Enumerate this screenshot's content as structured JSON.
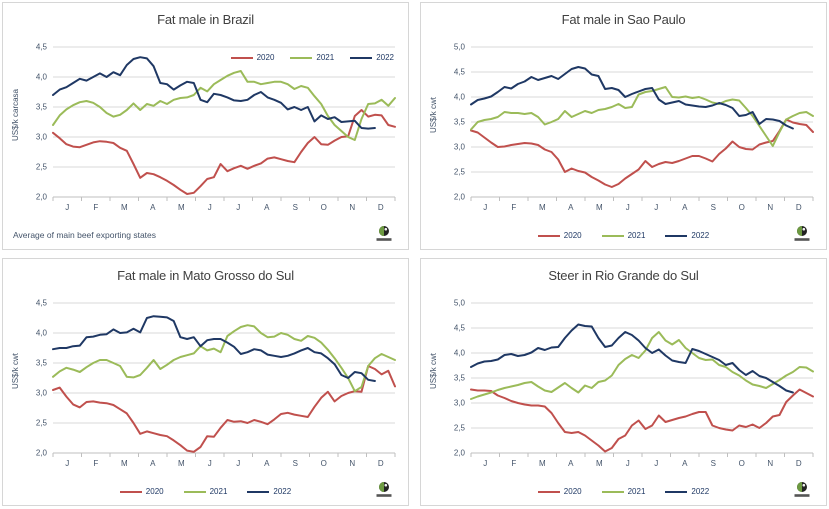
{
  "colors": {
    "series_2020": "#C0504D",
    "series_2021": "#9BBB59",
    "series_2022": "#1F3864",
    "grid": "#D9D9D9",
    "axis": "#BFBFBF",
    "axis_text": "#44546A",
    "title_text": "#404040"
  },
  "chart_data": [
    {
      "type": "line",
      "title": "Fat male in Brazil",
      "ylabel": "US$/k carcasa",
      "footnote": "Average  of main beef exporting states",
      "x_categories": [
        "J",
        "F",
        "M",
        "A",
        "M",
        "J",
        "J",
        "A",
        "S",
        "O",
        "N",
        "D"
      ],
      "x_unit": "weeks",
      "weeks": 52,
      "ylim": [
        2.0,
        4.5
      ],
      "ystep": 0.5,
      "grid": true,
      "legend_position": "inside-top-right",
      "series": [
        {
          "name": "2020",
          "color": "#C0504D",
          "values": [
            3.07,
            2.98,
            2.88,
            2.84,
            2.83,
            2.87,
            2.91,
            2.93,
            2.92,
            2.9,
            2.82,
            2.77,
            2.55,
            2.32,
            2.4,
            2.38,
            2.33,
            2.27,
            2.2,
            2.12,
            2.05,
            2.07,
            2.18,
            2.3,
            2.33,
            2.55,
            2.43,
            2.48,
            2.52,
            2.47,
            2.52,
            2.56,
            2.64,
            2.66,
            2.63,
            2.6,
            2.58,
            2.75,
            2.9,
            3.0,
            2.88,
            2.87,
            2.94,
            3.0,
            3.01,
            3.35,
            3.45,
            3.34,
            3.37,
            3.36,
            3.2,
            3.17
          ]
        },
        {
          "name": "2021",
          "color": "#9BBB59",
          "values": [
            3.2,
            3.36,
            3.46,
            3.53,
            3.58,
            3.6,
            3.57,
            3.5,
            3.4,
            3.34,
            3.37,
            3.45,
            3.56,
            3.45,
            3.55,
            3.52,
            3.6,
            3.55,
            3.62,
            3.65,
            3.66,
            3.7,
            3.82,
            3.76,
            3.88,
            3.95,
            4.02,
            4.07,
            4.1,
            3.92,
            3.92,
            3.88,
            3.9,
            3.92,
            3.92,
            3.88,
            3.8,
            3.85,
            3.82,
            3.68,
            3.55,
            3.35,
            3.2,
            3.1,
            3.0,
            2.95,
            3.3,
            3.55,
            3.56,
            3.62,
            3.52,
            3.65
          ]
        },
        {
          "name": "2022",
          "color": "#1F3864",
          "values": [
            3.7,
            3.79,
            3.83,
            3.9,
            3.97,
            3.94,
            4.0,
            4.06,
            4.0,
            4.08,
            4.03,
            4.2,
            4.3,
            4.33,
            4.31,
            4.18,
            3.9,
            3.88,
            3.79,
            3.86,
            3.92,
            3.9,
            3.62,
            3.58,
            3.72,
            3.7,
            3.66,
            3.61,
            3.6,
            3.62,
            3.7,
            3.75,
            3.66,
            3.62,
            3.57,
            3.46,
            3.5,
            3.45,
            3.5,
            3.26,
            3.36,
            3.3,
            3.33,
            3.25,
            3.26,
            3.27,
            3.15,
            3.14,
            3.15
          ]
        }
      ]
    },
    {
      "type": "line",
      "title": "Fat male in Sao Paulo",
      "ylabel": "US$/k cwt",
      "x_categories": [
        "J",
        "F",
        "M",
        "A",
        "M",
        "J",
        "J",
        "A",
        "S",
        "O",
        "N",
        "D"
      ],
      "x_unit": "weeks",
      "weeks": 52,
      "ylim": [
        2.0,
        5.0
      ],
      "ystep": 0.5,
      "grid": true,
      "legend_position": "bottom",
      "series": [
        {
          "name": "2020",
          "color": "#C0504D",
          "values": [
            3.33,
            3.29,
            3.19,
            3.09,
            3.0,
            3.01,
            3.04,
            3.06,
            3.08,
            3.07,
            3.04,
            2.95,
            2.9,
            2.75,
            2.5,
            2.57,
            2.52,
            2.49,
            2.4,
            2.33,
            2.25,
            2.2,
            2.26,
            2.37,
            2.46,
            2.55,
            2.72,
            2.6,
            2.66,
            2.7,
            2.68,
            2.72,
            2.77,
            2.82,
            2.82,
            2.77,
            2.71,
            2.86,
            2.97,
            3.11,
            3.0,
            2.96,
            2.95,
            3.05,
            3.09,
            3.12,
            3.32,
            3.55,
            3.49,
            3.46,
            3.44,
            3.3
          ]
        },
        {
          "name": "2021",
          "color": "#9BBB59",
          "values": [
            3.35,
            3.5,
            3.54,
            3.56,
            3.6,
            3.7,
            3.68,
            3.68,
            3.66,
            3.68,
            3.6,
            3.45,
            3.5,
            3.56,
            3.72,
            3.6,
            3.66,
            3.72,
            3.68,
            3.74,
            3.76,
            3.8,
            3.86,
            3.78,
            3.8,
            4.05,
            4.1,
            4.12,
            4.16,
            4.2,
            4.0,
            3.99,
            4.01,
            3.98,
            4.0,
            3.95,
            3.89,
            3.86,
            3.92,
            3.95,
            3.93,
            3.78,
            3.62,
            3.42,
            3.22,
            3.02,
            3.3,
            3.55,
            3.62,
            3.68,
            3.7,
            3.62
          ]
        },
        {
          "name": "2022",
          "color": "#1F3864",
          "values": [
            3.85,
            3.94,
            3.97,
            4.01,
            4.1,
            4.2,
            4.17,
            4.26,
            4.31,
            4.4,
            4.34,
            4.38,
            4.42,
            4.36,
            4.46,
            4.56,
            4.6,
            4.57,
            4.45,
            4.42,
            4.16,
            4.18,
            4.14,
            4.0,
            4.06,
            4.11,
            4.16,
            4.18,
            3.95,
            3.86,
            3.89,
            3.92,
            3.85,
            3.83,
            3.81,
            3.8,
            3.83,
            3.88,
            3.84,
            3.78,
            3.62,
            3.64,
            3.7,
            3.46,
            3.56,
            3.55,
            3.52,
            3.43,
            3.37
          ]
        }
      ]
    },
    {
      "type": "line",
      "title": "Fat male in Mato Grosso do Sul",
      "ylabel": "US$/k cwt",
      "x_categories": [
        "J",
        "F",
        "M",
        "A",
        "M",
        "J",
        "J",
        "A",
        "S",
        "O",
        "N",
        "D"
      ],
      "x_unit": "weeks",
      "weeks": 52,
      "ylim": [
        2.0,
        4.5
      ],
      "ystep": 0.5,
      "grid": true,
      "legend_position": "bottom",
      "series": [
        {
          "name": "2020",
          "color": "#C0504D",
          "values": [
            3.05,
            3.09,
            2.94,
            2.81,
            2.76,
            2.85,
            2.86,
            2.84,
            2.83,
            2.8,
            2.73,
            2.66,
            2.5,
            2.32,
            2.36,
            2.33,
            2.3,
            2.28,
            2.21,
            2.13,
            2.04,
            2.02,
            2.1,
            2.28,
            2.27,
            2.42,
            2.55,
            2.52,
            2.53,
            2.5,
            2.55,
            2.52,
            2.48,
            2.56,
            2.65,
            2.67,
            2.64,
            2.62,
            2.6,
            2.77,
            2.92,
            3.02,
            2.86,
            2.95,
            3.0,
            3.03,
            3.02,
            3.45,
            3.4,
            3.31,
            3.37,
            3.11
          ]
        },
        {
          "name": "2021",
          "color": "#9BBB59",
          "values": [
            3.27,
            3.36,
            3.42,
            3.39,
            3.35,
            3.43,
            3.5,
            3.55,
            3.55,
            3.5,
            3.45,
            3.27,
            3.26,
            3.3,
            3.42,
            3.55,
            3.4,
            3.47,
            3.55,
            3.6,
            3.63,
            3.66,
            3.78,
            3.71,
            3.74,
            3.68,
            3.95,
            4.03,
            4.1,
            4.13,
            4.11,
            4.0,
            3.93,
            3.94,
            4.0,
            3.97,
            3.9,
            3.87,
            3.95,
            3.92,
            3.84,
            3.72,
            3.58,
            3.42,
            3.25,
            3.03,
            3.1,
            3.45,
            3.58,
            3.65,
            3.6,
            3.55
          ]
        },
        {
          "name": "2022",
          "color": "#1F3864",
          "values": [
            3.73,
            3.75,
            3.75,
            3.78,
            3.79,
            3.93,
            3.94,
            3.97,
            3.98,
            4.06,
            4.0,
            4.01,
            4.07,
            4.01,
            4.25,
            4.28,
            4.27,
            4.26,
            4.2,
            3.93,
            3.9,
            3.93,
            3.78,
            3.88,
            3.9,
            3.9,
            3.84,
            3.77,
            3.65,
            3.68,
            3.73,
            3.71,
            3.64,
            3.62,
            3.6,
            3.62,
            3.66,
            3.71,
            3.75,
            3.68,
            3.66,
            3.58,
            3.48,
            3.3,
            3.25,
            3.35,
            3.33,
            3.22,
            3.2
          ]
        }
      ]
    },
    {
      "type": "line",
      "title": "Steer in Rio Grande do Sul",
      "ylabel": "US$/k cwt",
      "x_categories": [
        "J",
        "F",
        "M",
        "A",
        "M",
        "J",
        "J",
        "A",
        "S",
        "O",
        "N",
        "D"
      ],
      "x_unit": "weeks",
      "weeks": 52,
      "ylim": [
        2.0,
        5.0
      ],
      "ystep": 0.5,
      "grid": true,
      "legend_position": "bottom",
      "series": [
        {
          "name": "2020",
          "color": "#C0504D",
          "values": [
            3.27,
            3.25,
            3.25,
            3.24,
            3.15,
            3.1,
            3.04,
            3.0,
            2.97,
            2.95,
            2.95,
            2.93,
            2.8,
            2.6,
            2.42,
            2.4,
            2.42,
            2.35,
            2.25,
            2.15,
            2.03,
            2.1,
            2.28,
            2.35,
            2.55,
            2.65,
            2.48,
            2.55,
            2.75,
            2.62,
            2.66,
            2.7,
            2.73,
            2.78,
            2.82,
            2.82,
            2.55,
            2.5,
            2.47,
            2.45,
            2.55,
            2.52,
            2.57,
            2.5,
            2.6,
            2.73,
            2.76,
            3.02,
            3.15,
            3.27,
            3.2,
            3.13
          ]
        },
        {
          "name": "2021",
          "color": "#9BBB59",
          "values": [
            3.08,
            3.13,
            3.17,
            3.21,
            3.26,
            3.3,
            3.33,
            3.36,
            3.4,
            3.42,
            3.33,
            3.25,
            3.22,
            3.31,
            3.4,
            3.3,
            3.21,
            3.35,
            3.3,
            3.42,
            3.45,
            3.55,
            3.76,
            3.88,
            3.96,
            3.9,
            4.05,
            4.3,
            4.42,
            4.25,
            4.17,
            4.26,
            4.1,
            4.0,
            3.9,
            3.86,
            3.87,
            3.76,
            3.72,
            3.62,
            3.55,
            3.45,
            3.37,
            3.34,
            3.3,
            3.38,
            3.46,
            3.55,
            3.62,
            3.72,
            3.71,
            3.63
          ]
        },
        {
          "name": "2022",
          "color": "#1F3864",
          "values": [
            3.72,
            3.79,
            3.83,
            3.84,
            3.87,
            3.96,
            3.98,
            3.94,
            3.96,
            4.01,
            4.1,
            4.06,
            4.11,
            4.12,
            4.3,
            4.45,
            4.57,
            4.54,
            4.53,
            4.3,
            4.12,
            4.15,
            4.3,
            4.42,
            4.36,
            4.25,
            4.1,
            4.0,
            4.07,
            3.95,
            3.85,
            3.82,
            3.8,
            4.08,
            4.04,
            3.98,
            3.92,
            3.86,
            3.76,
            3.8,
            3.66,
            3.56,
            3.64,
            3.54,
            3.5,
            3.42,
            3.34,
            3.25,
            3.21
          ]
        }
      ]
    }
  ]
}
